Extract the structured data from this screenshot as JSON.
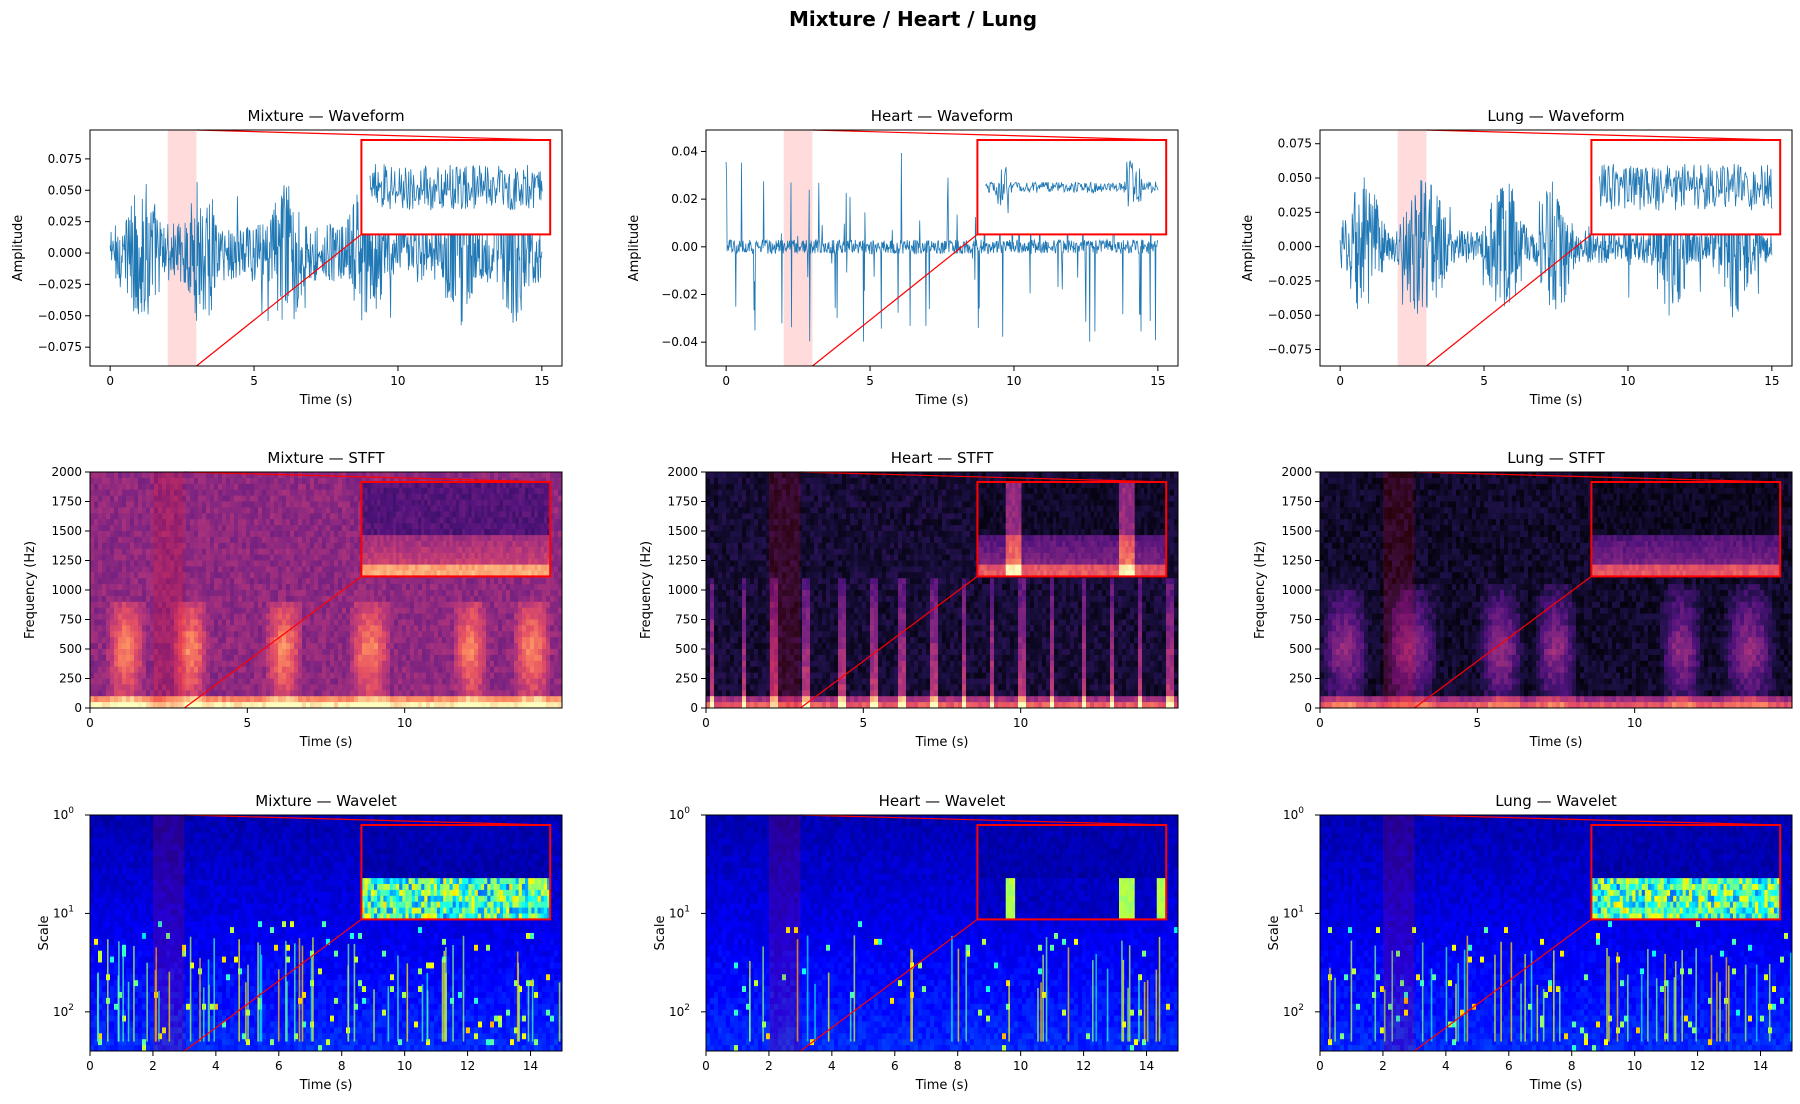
{
  "figure_title": "Mixture / Heart / Lung",
  "chart_data": [
    {
      "type": "line",
      "signal": "Mixture",
      "row": "waveform",
      "title": "Mixture — Waveform",
      "xlabel": "Time (s)",
      "ylabel": "Amplitude",
      "xlim": [
        -0.7,
        15.7
      ],
      "ylim": [
        -0.09,
        0.098
      ],
      "xticks": [
        0,
        5,
        10,
        15
      ],
      "xtick_labels": [
        "0",
        "5",
        "10",
        "15"
      ],
      "yticks": [
        -0.075,
        -0.05,
        -0.025,
        0.0,
        0.025,
        0.05,
        0.075
      ],
      "ytick_labels": [
        "−0.075",
        "−0.050",
        "−0.025",
        "0.000",
        "0.025",
        "0.050",
        "0.075"
      ],
      "duration_s": 15,
      "noise_amplitude": 0.024,
      "burst_amplitude": 0.035,
      "spike_amplitude": 0.06,
      "bursts": [
        [
          0.5,
          1.8
        ],
        [
          2.6,
          3.8
        ],
        [
          5.5,
          6.8
        ],
        [
          8.2,
          9.6
        ],
        [
          11.5,
          12.7
        ],
        [
          13.4,
          14.7
        ]
      ],
      "highlight_region": [
        2,
        3
      ],
      "zoom_inset": true,
      "color": "#1f77b4",
      "highlight_color": "#ffcccc",
      "inset_color": "#ff0000"
    },
    {
      "type": "line",
      "signal": "Heart",
      "row": "waveform",
      "title": "Heart — Waveform",
      "xlabel": "Time (s)",
      "ylabel": "Amplitude",
      "xlim": [
        -0.7,
        15.7
      ],
      "ylim": [
        -0.05,
        0.049
      ],
      "xticks": [
        0,
        5,
        10,
        15
      ],
      "xtick_labels": [
        "0",
        "5",
        "10",
        "15"
      ],
      "yticks": [
        -0.04,
        -0.02,
        0.0,
        0.02,
        0.04
      ],
      "ytick_labels": [
        "−0.04",
        "−0.02",
        "0.00",
        "0.02",
        "0.04"
      ],
      "duration_s": 15,
      "noise_amplitude": 0.003,
      "burst_amplitude": 0.0,
      "spike_amplitude": 0.04,
      "bursts": [],
      "highlight_region": [
        2,
        3
      ],
      "zoom_inset": true,
      "color": "#1f77b4",
      "highlight_color": "#ffcccc",
      "inset_color": "#ff0000"
    },
    {
      "type": "line",
      "signal": "Lung",
      "row": "waveform",
      "title": "Lung — Waveform",
      "xlabel": "Time (s)",
      "ylabel": "Amplitude",
      "xlim": [
        -0.7,
        15.7
      ],
      "ylim": [
        -0.087,
        0.085
      ],
      "xticks": [
        0,
        5,
        10,
        15
      ],
      "xtick_labels": [
        "0",
        "5",
        "10",
        "15"
      ],
      "yticks": [
        -0.075,
        -0.05,
        -0.025,
        0.0,
        0.025,
        0.05,
        0.075
      ],
      "ytick_labels": [
        "−0.075",
        "−0.050",
        "−0.025",
        "0.000",
        "0.025",
        "0.050",
        "0.075"
      ],
      "duration_s": 15,
      "noise_amplitude": 0.012,
      "burst_amplitude": 0.04,
      "spike_amplitude": 0.045,
      "bursts": [
        [
          0.0,
          1.6
        ],
        [
          2.0,
          3.8
        ],
        [
          5.0,
          6.5
        ],
        [
          6.8,
          8.2
        ],
        [
          10.8,
          12.2
        ],
        [
          12.8,
          14.5
        ]
      ],
      "highlight_region": [
        2,
        3
      ],
      "zoom_inset": true,
      "color": "#1f77b4",
      "highlight_color": "#ffcccc",
      "inset_color": "#ff0000"
    },
    {
      "type": "heatmap",
      "signal": "Mixture",
      "row": "stft",
      "title": "Mixture — STFT",
      "xlabel": "Time (s)",
      "ylabel": "Frequency (Hz)",
      "xlim": [
        0,
        15
      ],
      "ylim": [
        0,
        2000
      ],
      "xticks": [
        0,
        5,
        10
      ],
      "xtick_labels": [
        "0",
        "5",
        "10"
      ],
      "yticks": [
        0,
        250,
        500,
        750,
        1000,
        1250,
        1500,
        1750,
        2000
      ],
      "ytick_labels": [
        "0",
        "250",
        "500",
        "750",
        "1000",
        "1250",
        "1500",
        "1750",
        "2000"
      ],
      "background_level": 0.35,
      "bursts": [
        [
          0.5,
          1.8
        ],
        [
          2.6,
          3.8
        ],
        [
          5.5,
          6.8
        ],
        [
          8.2,
          9.6
        ],
        [
          11.5,
          12.7
        ],
        [
          13.4,
          14.7
        ]
      ],
      "burst_freq_max": 900,
      "colormap": "magma",
      "highlight_region": [
        2,
        3
      ],
      "zoom_inset": true,
      "inset_color": "#ff0000"
    },
    {
      "type": "heatmap",
      "signal": "Heart",
      "row": "stft",
      "title": "Heart — STFT",
      "xlabel": "Time (s)",
      "ylabel": "Frequency (Hz)",
      "xlim": [
        0,
        15
      ],
      "ylim": [
        0,
        2000
      ],
      "xticks": [
        0,
        5,
        10
      ],
      "xtick_labels": [
        "0",
        "5",
        "10"
      ],
      "yticks": [
        0,
        250,
        500,
        750,
        1000,
        1250,
        1500,
        1750,
        2000
      ],
      "ytick_labels": [
        "0",
        "250",
        "500",
        "750",
        "1000",
        "1250",
        "1500",
        "1750",
        "2000"
      ],
      "background_level": 0.04,
      "beats": [
        0.2,
        1.2,
        2.2,
        3.2,
        4.3,
        5.3,
        6.2,
        7.2,
        8.2,
        9.1,
        10.0,
        11.0,
        12.0,
        12.9,
        13.8,
        14.7
      ],
      "beat_freq_max": 1100,
      "colormap": "magma",
      "highlight_region": [
        2,
        3
      ],
      "zoom_inset": true,
      "inset_color": "#ff0000"
    },
    {
      "type": "heatmap",
      "signal": "Lung",
      "row": "stft",
      "title": "Lung — STFT",
      "xlabel": "Time (s)",
      "ylabel": "Frequency (Hz)",
      "xlim": [
        0,
        15
      ],
      "ylim": [
        0,
        2000
      ],
      "xticks": [
        0,
        5,
        10
      ],
      "xtick_labels": [
        "0",
        "5",
        "10"
      ],
      "yticks": [
        0,
        250,
        500,
        750,
        1000,
        1250,
        1500,
        1750,
        2000
      ],
      "ytick_labels": [
        "0",
        "250",
        "500",
        "750",
        "1000",
        "1250",
        "1500",
        "1750",
        "2000"
      ],
      "background_level": 0.02,
      "bursts": [
        [
          0.0,
          1.6
        ],
        [
          2.0,
          3.8
        ],
        [
          5.0,
          6.5
        ],
        [
          6.8,
          8.2
        ],
        [
          10.8,
          12.2
        ],
        [
          12.8,
          14.5
        ]
      ],
      "burst_freq_max": 1050,
      "colormap": "magma",
      "highlight_region": [
        2,
        3
      ],
      "zoom_inset": true,
      "inset_color": "#ff0000"
    },
    {
      "type": "heatmap",
      "signal": "Mixture",
      "row": "wavelet",
      "title": "Mixture — Wavelet",
      "xlabel": "Time (s)",
      "ylabel": "Scale",
      "xlim": [
        0,
        15
      ],
      "ylim_log": [
        1,
        250
      ],
      "y_scale": "log",
      "xticks": [
        0,
        2,
        4,
        6,
        8,
        10,
        12,
        14
      ],
      "xtick_labels": [
        "0",
        "2",
        "4",
        "6",
        "8",
        "10",
        "12",
        "14"
      ],
      "yticks": [
        1,
        10,
        100
      ],
      "ytick_labels": [
        "10",
        "10",
        "10"
      ],
      "ytick_exponents": [
        "0",
        "1",
        "2"
      ],
      "streak_count": 55,
      "colormap": "jet",
      "highlight_region": [
        2,
        3
      ],
      "zoom_inset": true,
      "inset_color": "#ff0000"
    },
    {
      "type": "heatmap",
      "signal": "Heart",
      "row": "wavelet",
      "title": "Heart — Wavelet",
      "xlabel": "Time (s)",
      "ylabel": "Scale",
      "xlim": [
        0,
        15
      ],
      "ylim_log": [
        1,
        250
      ],
      "y_scale": "log",
      "xticks": [
        0,
        2,
        4,
        6,
        8,
        10,
        12,
        14
      ],
      "xtick_labels": [
        "0",
        "2",
        "4",
        "6",
        "8",
        "10",
        "12",
        "14"
      ],
      "yticks": [
        1,
        10,
        100
      ],
      "ytick_labels": [
        "10",
        "10",
        "10"
      ],
      "ytick_exponents": [
        "0",
        "1",
        "2"
      ],
      "streak_count": 32,
      "colormap": "jet",
      "highlight_region": [
        2,
        3
      ],
      "zoom_inset": true,
      "inset_color": "#ff0000"
    },
    {
      "type": "heatmap",
      "signal": "Lung",
      "row": "wavelet",
      "title": "Lung — Wavelet",
      "xlabel": "Time (s)",
      "ylabel": "Scale",
      "xlim": [
        0,
        15
      ],
      "ylim_log": [
        1,
        250
      ],
      "y_scale": "log",
      "xticks": [
        0,
        2,
        4,
        6,
        8,
        10,
        12,
        14
      ],
      "xtick_labels": [
        "0",
        "2",
        "4",
        "6",
        "8",
        "10",
        "12",
        "14"
      ],
      "yticks": [
        1,
        10,
        100
      ],
      "ytick_labels": [
        "10",
        "10",
        "10"
      ],
      "ytick_exponents": [
        "0",
        "1",
        "2"
      ],
      "streak_count": 45,
      "colormap": "jet",
      "highlight_region": [
        2,
        3
      ],
      "zoom_inset": true,
      "inset_color": "#ff0000"
    }
  ]
}
